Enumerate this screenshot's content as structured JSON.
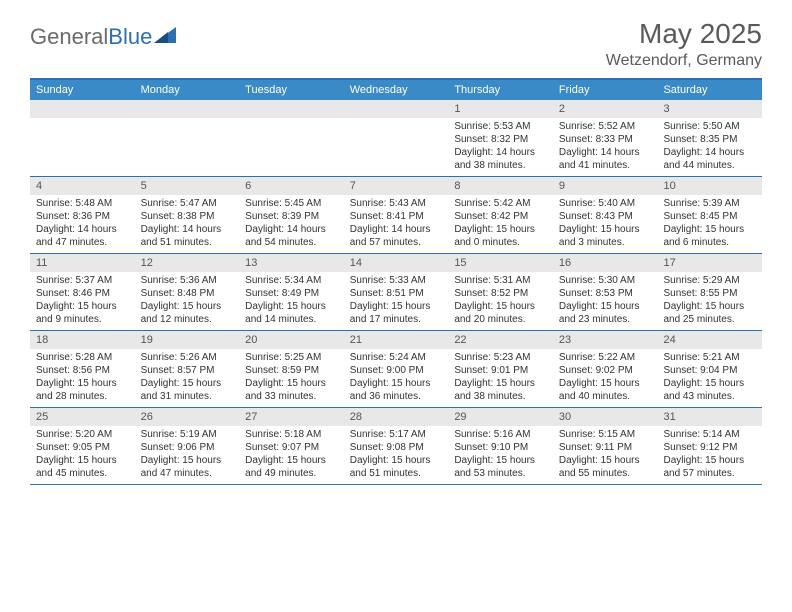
{
  "logo": {
    "text1": "General",
    "text2": "Blue"
  },
  "title": {
    "month": "May 2025",
    "location": "Wetzendorf, Germany"
  },
  "colors": {
    "accent": "#3a8ac8",
    "border": "#2c6fb5",
    "bar": "#e8e8e8"
  },
  "dayHeaders": [
    "Sunday",
    "Monday",
    "Tuesday",
    "Wednesday",
    "Thursday",
    "Friday",
    "Saturday"
  ],
  "weeks": [
    [
      {
        "n": "",
        "sr": "",
        "ss": "",
        "dl": ""
      },
      {
        "n": "",
        "sr": "",
        "ss": "",
        "dl": ""
      },
      {
        "n": "",
        "sr": "",
        "ss": "",
        "dl": ""
      },
      {
        "n": "",
        "sr": "",
        "ss": "",
        "dl": ""
      },
      {
        "n": "1",
        "sr": "Sunrise: 5:53 AM",
        "ss": "Sunset: 8:32 PM",
        "dl": "Daylight: 14 hours and 38 minutes."
      },
      {
        "n": "2",
        "sr": "Sunrise: 5:52 AM",
        "ss": "Sunset: 8:33 PM",
        "dl": "Daylight: 14 hours and 41 minutes."
      },
      {
        "n": "3",
        "sr": "Sunrise: 5:50 AM",
        "ss": "Sunset: 8:35 PM",
        "dl": "Daylight: 14 hours and 44 minutes."
      }
    ],
    [
      {
        "n": "4",
        "sr": "Sunrise: 5:48 AM",
        "ss": "Sunset: 8:36 PM",
        "dl": "Daylight: 14 hours and 47 minutes."
      },
      {
        "n": "5",
        "sr": "Sunrise: 5:47 AM",
        "ss": "Sunset: 8:38 PM",
        "dl": "Daylight: 14 hours and 51 minutes."
      },
      {
        "n": "6",
        "sr": "Sunrise: 5:45 AM",
        "ss": "Sunset: 8:39 PM",
        "dl": "Daylight: 14 hours and 54 minutes."
      },
      {
        "n": "7",
        "sr": "Sunrise: 5:43 AM",
        "ss": "Sunset: 8:41 PM",
        "dl": "Daylight: 14 hours and 57 minutes."
      },
      {
        "n": "8",
        "sr": "Sunrise: 5:42 AM",
        "ss": "Sunset: 8:42 PM",
        "dl": "Daylight: 15 hours and 0 minutes."
      },
      {
        "n": "9",
        "sr": "Sunrise: 5:40 AM",
        "ss": "Sunset: 8:43 PM",
        "dl": "Daylight: 15 hours and 3 minutes."
      },
      {
        "n": "10",
        "sr": "Sunrise: 5:39 AM",
        "ss": "Sunset: 8:45 PM",
        "dl": "Daylight: 15 hours and 6 minutes."
      }
    ],
    [
      {
        "n": "11",
        "sr": "Sunrise: 5:37 AM",
        "ss": "Sunset: 8:46 PM",
        "dl": "Daylight: 15 hours and 9 minutes."
      },
      {
        "n": "12",
        "sr": "Sunrise: 5:36 AM",
        "ss": "Sunset: 8:48 PM",
        "dl": "Daylight: 15 hours and 12 minutes."
      },
      {
        "n": "13",
        "sr": "Sunrise: 5:34 AM",
        "ss": "Sunset: 8:49 PM",
        "dl": "Daylight: 15 hours and 14 minutes."
      },
      {
        "n": "14",
        "sr": "Sunrise: 5:33 AM",
        "ss": "Sunset: 8:51 PM",
        "dl": "Daylight: 15 hours and 17 minutes."
      },
      {
        "n": "15",
        "sr": "Sunrise: 5:31 AM",
        "ss": "Sunset: 8:52 PM",
        "dl": "Daylight: 15 hours and 20 minutes."
      },
      {
        "n": "16",
        "sr": "Sunrise: 5:30 AM",
        "ss": "Sunset: 8:53 PM",
        "dl": "Daylight: 15 hours and 23 minutes."
      },
      {
        "n": "17",
        "sr": "Sunrise: 5:29 AM",
        "ss": "Sunset: 8:55 PM",
        "dl": "Daylight: 15 hours and 25 minutes."
      }
    ],
    [
      {
        "n": "18",
        "sr": "Sunrise: 5:28 AM",
        "ss": "Sunset: 8:56 PM",
        "dl": "Daylight: 15 hours and 28 minutes."
      },
      {
        "n": "19",
        "sr": "Sunrise: 5:26 AM",
        "ss": "Sunset: 8:57 PM",
        "dl": "Daylight: 15 hours and 31 minutes."
      },
      {
        "n": "20",
        "sr": "Sunrise: 5:25 AM",
        "ss": "Sunset: 8:59 PM",
        "dl": "Daylight: 15 hours and 33 minutes."
      },
      {
        "n": "21",
        "sr": "Sunrise: 5:24 AM",
        "ss": "Sunset: 9:00 PM",
        "dl": "Daylight: 15 hours and 36 minutes."
      },
      {
        "n": "22",
        "sr": "Sunrise: 5:23 AM",
        "ss": "Sunset: 9:01 PM",
        "dl": "Daylight: 15 hours and 38 minutes."
      },
      {
        "n": "23",
        "sr": "Sunrise: 5:22 AM",
        "ss": "Sunset: 9:02 PM",
        "dl": "Daylight: 15 hours and 40 minutes."
      },
      {
        "n": "24",
        "sr": "Sunrise: 5:21 AM",
        "ss": "Sunset: 9:04 PM",
        "dl": "Daylight: 15 hours and 43 minutes."
      }
    ],
    [
      {
        "n": "25",
        "sr": "Sunrise: 5:20 AM",
        "ss": "Sunset: 9:05 PM",
        "dl": "Daylight: 15 hours and 45 minutes."
      },
      {
        "n": "26",
        "sr": "Sunrise: 5:19 AM",
        "ss": "Sunset: 9:06 PM",
        "dl": "Daylight: 15 hours and 47 minutes."
      },
      {
        "n": "27",
        "sr": "Sunrise: 5:18 AM",
        "ss": "Sunset: 9:07 PM",
        "dl": "Daylight: 15 hours and 49 minutes."
      },
      {
        "n": "28",
        "sr": "Sunrise: 5:17 AM",
        "ss": "Sunset: 9:08 PM",
        "dl": "Daylight: 15 hours and 51 minutes."
      },
      {
        "n": "29",
        "sr": "Sunrise: 5:16 AM",
        "ss": "Sunset: 9:10 PM",
        "dl": "Daylight: 15 hours and 53 minutes."
      },
      {
        "n": "30",
        "sr": "Sunrise: 5:15 AM",
        "ss": "Sunset: 9:11 PM",
        "dl": "Daylight: 15 hours and 55 minutes."
      },
      {
        "n": "31",
        "sr": "Sunrise: 5:14 AM",
        "ss": "Sunset: 9:12 PM",
        "dl": "Daylight: 15 hours and 57 minutes."
      }
    ]
  ]
}
